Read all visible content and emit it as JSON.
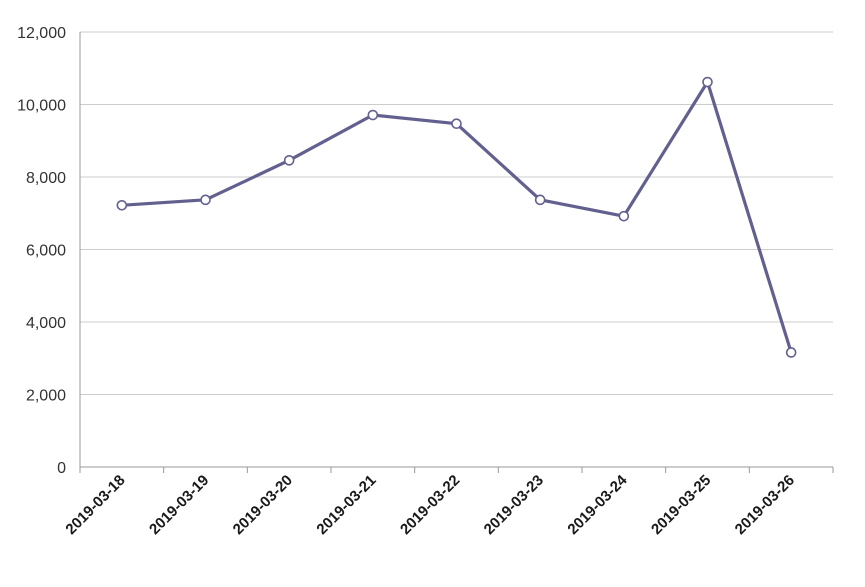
{
  "chart_data": {
    "type": "line",
    "title": "",
    "xlabel": "",
    "ylabel": "",
    "categories": [
      "2019-03-18",
      "2019-03-19",
      "2019-03-20",
      "2019-03-21",
      "2019-03-22",
      "2019-03-23",
      "2019-03-24",
      "2019-03-25",
      "2019-03-26"
    ],
    "series": [
      {
        "values": [
          7220,
          7370,
          8460,
          9710,
          9470,
          7370,
          6920,
          10620,
          3160
        ]
      }
    ],
    "ylim": [
      0,
      12000
    ],
    "yticks": [
      0,
      2000,
      4000,
      6000,
      8000,
      10000,
      12000
    ],
    "ytick_labels": [
      "0",
      "2,000",
      "4,000",
      "6,000",
      "8,000",
      "10,000",
      "12,000"
    ],
    "grid": "horizontal",
    "legend": "none",
    "colors": {
      "line": "#62608f",
      "marker_fill": "#ffffff",
      "grid": "#cccccc",
      "axis": "#999999"
    }
  }
}
